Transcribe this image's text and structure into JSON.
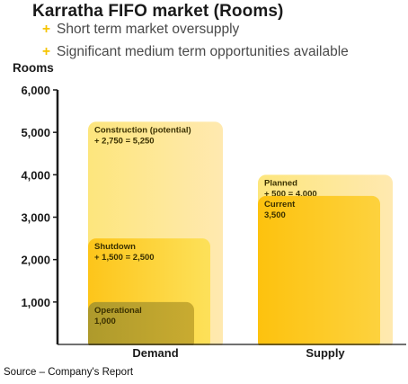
{
  "header": {
    "title": "Karratha FIFO market (Rooms)",
    "bullets": [
      {
        "marker": "+",
        "text": "Short term market oversupply"
      },
      {
        "marker": "+",
        "text": "Significant medium term opportunities available"
      }
    ]
  },
  "chart_data": {
    "type": "bar",
    "stacking": "overlapping",
    "ylabel": "Rooms",
    "ylim": [
      0,
      6000
    ],
    "yticks": [
      1000,
      2000,
      3000,
      4000,
      5000,
      6000
    ],
    "ytick_labels": [
      "1,000",
      "2,000",
      "3,000",
      "4,000",
      "5,000",
      "6,000"
    ],
    "grid": false,
    "categories": [
      "Demand",
      "Supply"
    ],
    "bars": [
      {
        "category": "Demand",
        "segments": [
          {
            "label": "Construction (potential)",
            "note": "+ 2,750 = 5,250",
            "value": 5250,
            "color": "#ffe9a3"
          },
          {
            "label": "Shutdown",
            "note": "+ 1,500 = 2,500",
            "value": 2500,
            "color": "#fdd23a"
          },
          {
            "label": "Operational",
            "note": "1,000",
            "value": 1000,
            "color": "#b8a23a"
          }
        ]
      },
      {
        "category": "Supply",
        "segments": [
          {
            "label": "Planned",
            "note": "+ 500 = 4,000",
            "value": 4000,
            "color": "#ffe9a3"
          },
          {
            "label": "Current",
            "note": "3,500",
            "value": 3500,
            "color": "#fdc41a"
          }
        ]
      }
    ]
  },
  "footer": {
    "source": "Source – Company's Report"
  }
}
